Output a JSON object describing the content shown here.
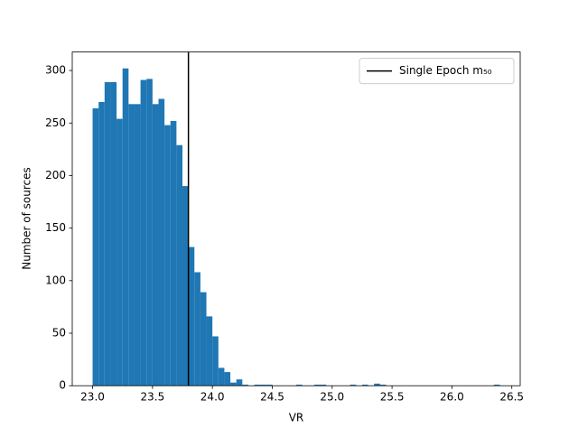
{
  "chart_data": {
    "type": "histogram",
    "x_label": "VR",
    "y_label": "Number of sources",
    "bins": [
      23.0,
      23.05,
      23.1,
      23.15,
      23.2,
      23.25,
      23.3,
      23.35,
      23.4,
      23.45,
      23.5,
      23.55,
      23.6,
      23.65,
      23.7,
      23.75,
      23.8,
      23.85,
      23.9,
      23.95,
      24.0,
      24.05,
      24.1,
      24.15,
      24.2,
      24.25,
      24.3,
      24.35,
      24.4,
      24.45,
      24.5,
      24.55,
      24.6,
      24.65,
      24.7,
      24.75,
      24.8,
      24.85,
      24.9,
      24.95,
      25.0,
      25.05,
      25.1,
      25.15,
      25.2,
      25.25,
      25.3,
      25.35,
      25.4,
      25.45,
      25.5,
      25.55,
      25.6,
      25.65,
      25.7,
      25.75,
      25.8,
      25.85,
      25.9,
      25.95,
      26.0,
      26.05,
      26.1,
      26.15,
      26.2,
      26.25,
      26.3,
      26.35,
      26.4
    ],
    "values": [
      264,
      270,
      289,
      289,
      254,
      302,
      268,
      268,
      291,
      292,
      268,
      273,
      248,
      252,
      229,
      190,
      132,
      108,
      89,
      66,
      47,
      17,
      13,
      3,
      6,
      1,
      0,
      1,
      1,
      1,
      0,
      0,
      0,
      0,
      1,
      0,
      0,
      1,
      1,
      0,
      0,
      0,
      0,
      1,
      0,
      1,
      0,
      2,
      1,
      0,
      0,
      0,
      0,
      0,
      0,
      0,
      0,
      0,
      0,
      0,
      0,
      0,
      0,
      0,
      0,
      0,
      0,
      1
    ],
    "color": "#1f77b4",
    "vline": {
      "x": 23.8,
      "label": "Single Epoch m₅₀",
      "color": "#000000"
    },
    "legend": "upper right",
    "xlim": [
      22.83,
      26.57
    ],
    "ylim": [
      0,
      317.6
    ],
    "xticks": [
      {
        "value": 23.0,
        "label": "23.0"
      },
      23.5,
      {
        "value": 24.0,
        "label": "24.0"
      },
      24.5,
      {
        "value": 25.0,
        "label": "25.0"
      },
      25.5,
      {
        "value": 26.0,
        "label": "26.0"
      },
      26.5
    ],
    "yticks": [
      0,
      50,
      100,
      150,
      200,
      250,
      300
    ]
  }
}
